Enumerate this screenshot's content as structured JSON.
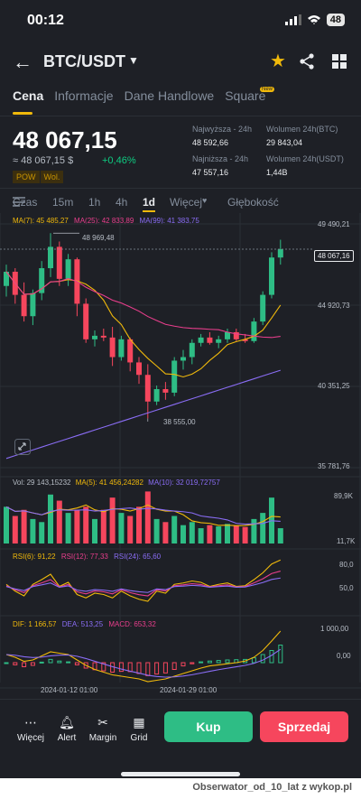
{
  "status": {
    "time": "00:12",
    "battery": "48"
  },
  "header": {
    "pair": "BTC/USDT"
  },
  "tabs": [
    "Cena",
    "Informacje",
    "Dane Handlowe",
    "Square"
  ],
  "new_badge": "New",
  "price": {
    "last": "48 067,15",
    "usd": "≈ 48 067,15 $",
    "change_pct": "+0,46%",
    "tags": [
      "POW",
      "Wol."
    ]
  },
  "stats": {
    "high_label": "Najwyższa - 24h",
    "high_value": "48 592,66",
    "low_label": "Najniższa - 24h",
    "low_value": "47 557,16",
    "vol_btc_label": "Wolumen 24h(BTC)",
    "vol_btc_value": "29 843,04",
    "vol_usdt_label": "Wolumen 24h(USDT)",
    "vol_usdt_value": "1,44B"
  },
  "timeframes": [
    "Czas",
    "15m",
    "1h",
    "4h",
    "1d",
    "Więcej",
    "Głębokość"
  ],
  "chart": {
    "ma_legend": {
      "ma7": "MA(7): 45 485,27",
      "ma25": "MA(25): 42 833,89",
      "ma99": "MA(99): 41 383,75"
    },
    "price_axis": [
      "49 490,21",
      "44 920,73",
      "40 351,25",
      "35 781,76"
    ],
    "high_marker": "48 969,48",
    "low_marker": "38 555,00",
    "current_price": "48 067,16",
    "vol_legend": {
      "vol": "Vol: 29 143,15232",
      "ma5": "MA(5): 41 456,24282",
      "ma10": "MA(10): 32 019,72757"
    },
    "vol_axis": [
      "89,9K",
      "11,7K"
    ],
    "rsi_legend": {
      "rsi6": "RSI(6): 91,22",
      "rsi12": "RSI(12): 77,33",
      "rsi24": "RSI(24): 65,60"
    },
    "rsi_axis": [
      "80,0",
      "50,0"
    ],
    "macd_legend": {
      "dif": "DIF: 1 166,57",
      "dea": "DEA: 513,25",
      "macd": "MACD: 653,32"
    },
    "macd_axis": [
      "1 000,00",
      "0,00"
    ],
    "date_labels": [
      "2024-01-12 01:00",
      "2024-01-29 01:00"
    ]
  },
  "bottom": {
    "items": [
      "Więcej",
      "Alert",
      "Margin",
      "Grid"
    ],
    "buy": "Kup",
    "sell": "Sprzedaj"
  },
  "watermark": "Obserwator_od_10_lat z wykop.pl",
  "colors": {
    "up": "#2ebd85",
    "down": "#f6465d",
    "accent": "#f0b90b",
    "ma7": "#f0b90b",
    "ma25": "#e83e8c",
    "ma99": "#8a6df5"
  },
  "chart_data": {
    "type": "candlestick",
    "ohlc": [
      [
        46000,
        47200,
        45400,
        46800
      ],
      [
        46800,
        47000,
        45000,
        45500
      ],
      [
        45500,
        46200,
        44000,
        44300
      ],
      [
        44300,
        45800,
        43800,
        45600
      ],
      [
        45600,
        47400,
        45200,
        47000
      ],
      [
        47000,
        48969,
        46500,
        48200
      ],
      [
        48200,
        48500,
        46000,
        46400
      ],
      [
        46400,
        47800,
        46000,
        47500
      ],
      [
        47500,
        47600,
        44300,
        45000
      ],
      [
        45000,
        45300,
        42800,
        43000
      ],
      [
        43000,
        43500,
        42600,
        43200
      ],
      [
        43200,
        43600,
        42900,
        43100
      ],
      [
        43100,
        43700,
        41500,
        42000
      ],
      [
        42000,
        43200,
        41800,
        43000
      ],
      [
        43000,
        43100,
        41200,
        41700
      ],
      [
        41700,
        42000,
        40500,
        41000
      ],
      [
        41000,
        41600,
        38555,
        39500
      ],
      [
        39500,
        40400,
        39300,
        40200
      ],
      [
        40200,
        40600,
        39600,
        40000
      ],
      [
        40000,
        42000,
        39800,
        41800
      ],
      [
        41800,
        42400,
        41300,
        42000
      ],
      [
        42000,
        43000,
        41600,
        42800
      ],
      [
        42800,
        43300,
        42600,
        43100
      ],
      [
        43100,
        43400,
        42700,
        42800
      ],
      [
        42800,
        43200,
        42500,
        43000
      ],
      [
        43000,
        43600,
        42800,
        43400
      ],
      [
        43400,
        43600,
        42900,
        43000
      ],
      [
        43000,
        43300,
        42800,
        42900
      ],
      [
        42900,
        44200,
        42800,
        44000
      ],
      [
        44000,
        45700,
        43800,
        45500
      ],
      [
        45500,
        47900,
        45300,
        47600
      ],
      [
        47600,
        48600,
        47200,
        48067
      ]
    ]
  }
}
